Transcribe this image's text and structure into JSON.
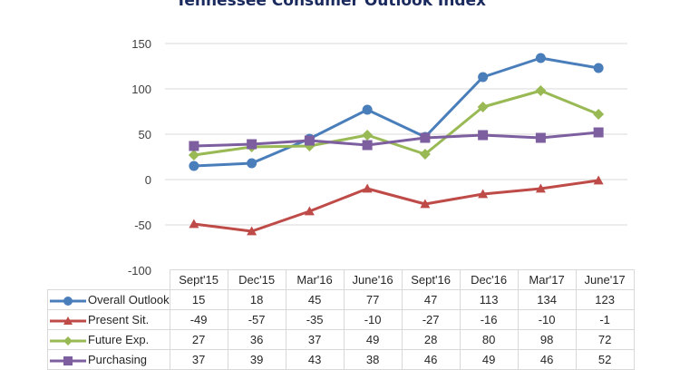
{
  "chart_data": {
    "type": "line",
    "title": "Tennessee Consumer Outlook Index",
    "xlabel": "",
    "ylabel": "",
    "ylim": [
      -100,
      150
    ],
    "yticks": [
      150,
      100,
      50,
      0,
      -50,
      -100
    ],
    "grid": true,
    "legend": "data-table-left",
    "categories": [
      "Sept'15",
      "Dec'15",
      "Mar'16",
      "June'16",
      "Sept'16",
      "Dec'16",
      "Mar'17",
      "June'17"
    ],
    "series": [
      {
        "name": "Overall Outlook",
        "color": "#4a7ebb",
        "marker": "circle",
        "values": [
          15,
          18,
          45,
          77,
          47,
          113,
          134,
          123
        ]
      },
      {
        "name": "Present Sit.",
        "color": "#be4b48",
        "marker": "triangle",
        "values": [
          -49,
          -57,
          -35,
          -10,
          -27,
          -16,
          -10,
          -1
        ]
      },
      {
        "name": "Future Exp.",
        "color": "#98b954",
        "marker": "diamond",
        "values": [
          27,
          36,
          37,
          49,
          28,
          80,
          98,
          72
        ]
      },
      {
        "name": "Purchasing",
        "color": "#7d5fa0",
        "marker": "square",
        "values": [
          37,
          39,
          43,
          38,
          46,
          49,
          46,
          52
        ]
      }
    ]
  }
}
